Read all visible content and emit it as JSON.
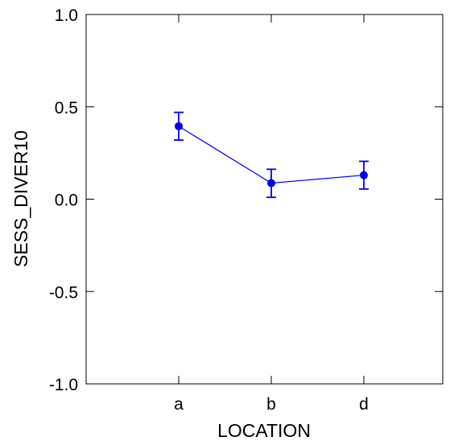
{
  "chart_data": {
    "type": "line",
    "xlabel": "LOCATION",
    "ylabel": "SESS_DIVER10",
    "categories": [
      "a",
      "b",
      "d"
    ],
    "series": [
      {
        "values": [
          0.395,
          0.087,
          0.13
        ],
        "error_low": [
          0.32,
          0.01,
          0.055
        ],
        "error_high": [
          0.47,
          0.162,
          0.205
        ],
        "color": "#0000ee"
      }
    ],
    "ylim": [
      -1.0,
      1.0
    ],
    "yticks": [
      "-1.0",
      "-0.5",
      "0.0",
      "0.5",
      "1.0"
    ],
    "ytick_values": [
      -1.0,
      -0.5,
      0.0,
      0.5,
      1.0
    ],
    "grid": false,
    "legend": "none",
    "frame": "box",
    "axis_color": "#000000"
  }
}
